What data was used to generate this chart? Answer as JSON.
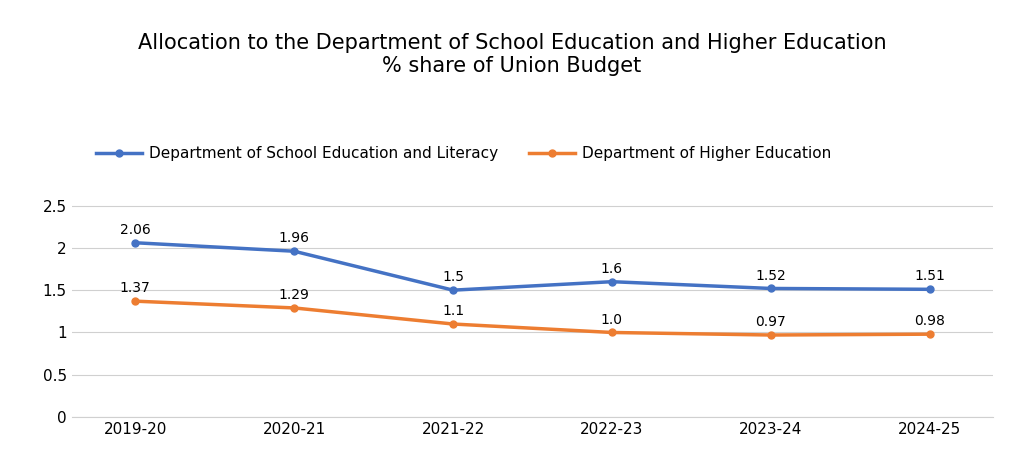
{
  "title": "Allocation to the Department of School Education and Higher Education\n% share of Union Budget",
  "categories": [
    "2019-20",
    "2020-21",
    "2021-22",
    "2022-23",
    "2023-24",
    "2024-25"
  ],
  "school_values": [
    2.06,
    1.96,
    1.5,
    1.6,
    1.52,
    1.51
  ],
  "higher_values": [
    1.37,
    1.29,
    1.1,
    1.0,
    0.97,
    0.98
  ],
  "school_label": "Department of School Education and Literacy",
  "higher_label": "Department of Higher Education",
  "school_color": "#4472C4",
  "higher_color": "#ED7D31",
  "ylim": [
    0,
    2.8
  ],
  "yticks": [
    0,
    0.5,
    1.0,
    1.5,
    2.0,
    2.5
  ],
  "bg_color": "#FFFFFF",
  "title_fontsize": 15,
  "legend_fontsize": 11,
  "tick_fontsize": 11,
  "line_width": 2.5,
  "marker": "o",
  "marker_size": 5,
  "annotation_fontsize": 10
}
